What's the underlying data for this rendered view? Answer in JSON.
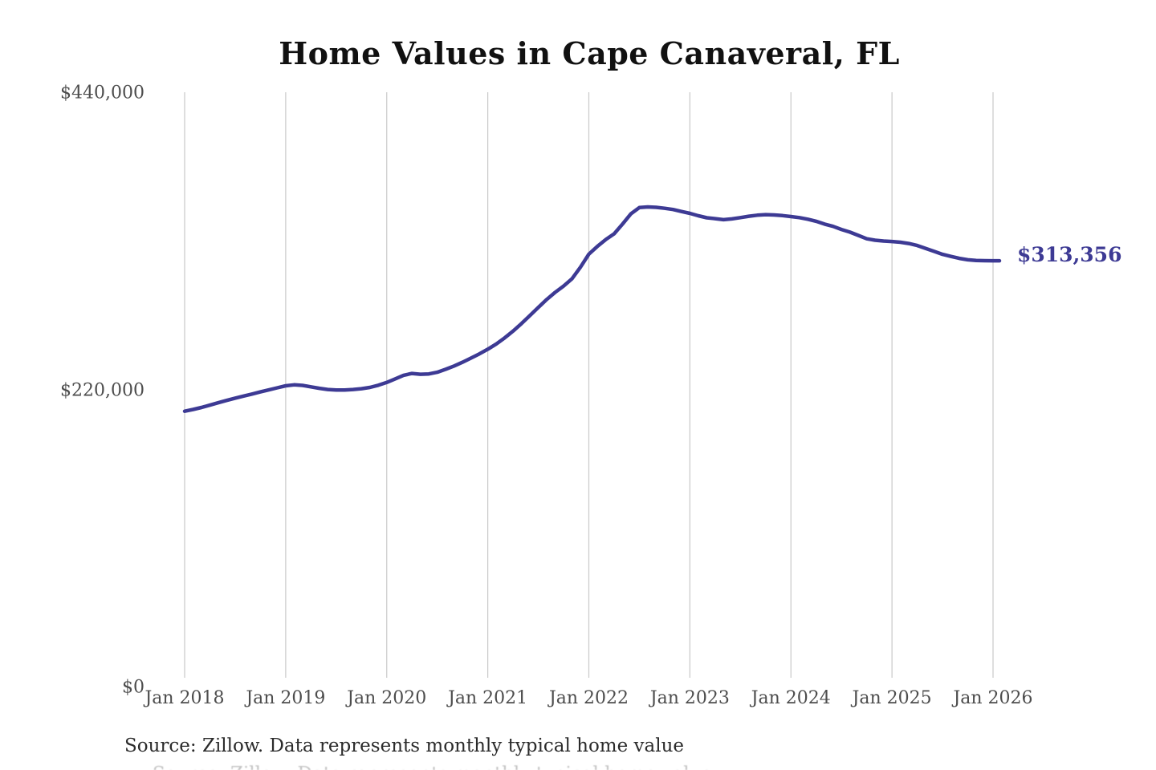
{
  "page": {
    "background": "#ffffff"
  },
  "chart_data": {
    "type": "line",
    "title": "Home Values in Cape Canaveral, FL",
    "xlabel": "",
    "ylabel": "",
    "ylim": [
      0,
      440000
    ],
    "y_tick_labels": [
      "$440,000",
      "$220,000",
      "$0"
    ],
    "y_tick_values": [
      440000,
      220000,
      0
    ],
    "x_tick_labels": [
      "Jan 2018",
      "Jan 2019",
      "Jan 2020",
      "Jan 2021",
      "Jan 2022",
      "Jan 2023",
      "Jan 2024",
      "Jan 2025",
      "Jan 2026"
    ],
    "frequency": "monthly",
    "x_range": [
      "Jan 2018",
      "Jan 2026"
    ],
    "grid": "vertical",
    "gridline_color": "#c9c9c9",
    "legend": "none",
    "series": [
      {
        "name": "Typical home value",
        "color": "#3d3a94",
        "start": "Jan 2018",
        "values": [
          200300,
          201600,
          203100,
          204900,
          206700,
          208400,
          210100,
          211700,
          213200,
          214800,
          216300,
          217900,
          219400,
          220100,
          219700,
          218600,
          217500,
          216600,
          216200,
          216200,
          216600,
          217200,
          218200,
          219800,
          221900,
          224600,
          227300,
          228700,
          228100,
          228300,
          229600,
          231800,
          234300,
          237100,
          240200,
          243400,
          246900,
          250800,
          255400,
          260500,
          266200,
          272200,
          278300,
          284300,
          289600,
          294300,
          299800,
          308500,
          318300,
          324100,
          329300,
          333600,
          341000,
          348600,
          353300,
          353800,
          353500,
          352800,
          351900,
          350400,
          349000,
          347200,
          345700,
          345000,
          344200,
          344800,
          345800,
          346800,
          347600,
          348000,
          347800,
          347300,
          346600,
          345800,
          344600,
          343000,
          340900,
          339200,
          336900,
          334900,
          332400,
          329900,
          328800,
          328200,
          327800,
          327300,
          326300,
          324800,
          322600,
          320400,
          318200,
          316600,
          315200,
          314100,
          313600,
          313400,
          313356
        ]
      }
    ],
    "end_label": "$313,356",
    "latest_value": 313356,
    "source": "Source: Zillow. Data represents monthly typical home value"
  }
}
